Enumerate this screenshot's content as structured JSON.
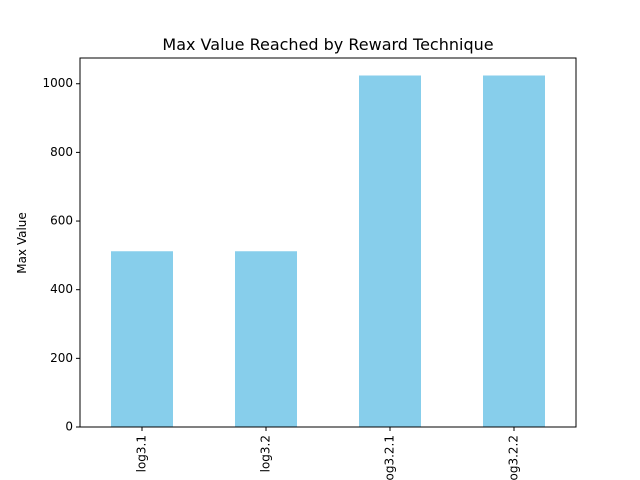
{
  "chart_data": {
    "type": "bar",
    "title": "Max Value Reached by Reward Technique",
    "xlabel": "",
    "ylabel": "Max Value",
    "categories": [
      "log3.1",
      "log3.2",
      "log3.2.1",
      "log3.2.2"
    ],
    "values": [
      512,
      512,
      1024,
      1024
    ],
    "ylim": [
      0,
      1075
    ],
    "yticks": [
      0,
      200,
      400,
      600,
      800,
      1000
    ],
    "bar_color": "#87ceeb",
    "grid": false,
    "legend": "none"
  }
}
